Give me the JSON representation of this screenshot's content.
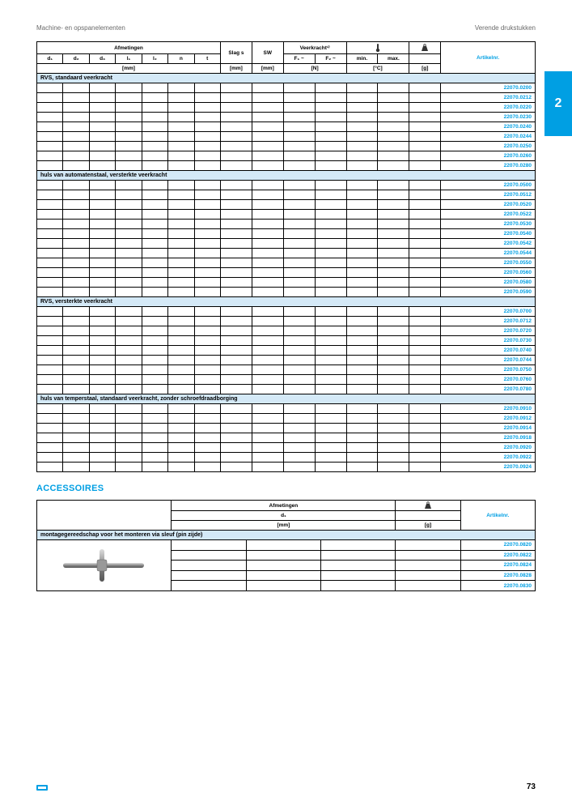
{
  "header": {
    "left": "Machine- en opspanelementen",
    "right": "Verende drukstukken"
  },
  "sideTab": "2",
  "mainTable": {
    "topHeaders": {
      "afmetingen": "Afmetingen",
      "slag": "Slag s",
      "sw": "SW",
      "veerkracht": "Veerkracht¹⁾",
      "artikel": "Artikelnr."
    },
    "subHeaders": {
      "d1": "d₁",
      "d2": "d₂",
      "d3": "d₃",
      "l1": "l₁",
      "l2": "l₂",
      "n": "n",
      "t": "t",
      "f1": "F₁ ~",
      "f2": "F₂ ~",
      "min": "min.",
      "max": "max."
    },
    "units": {
      "mm": "[mm]",
      "n": "[N]",
      "c": "[°C]",
      "g": "[g]"
    },
    "groups": [
      {
        "label": "RVS, standaard veerkracht",
        "rows": [
          {
            "art": "22070.0200"
          },
          {
            "art": "22070.0212"
          },
          {
            "art": "22070.0220"
          },
          {
            "art": "22070.0230"
          },
          {
            "art": "22070.0240"
          },
          {
            "art": "22070.0244"
          },
          {
            "art": "22070.0250"
          },
          {
            "art": "22070.0260"
          },
          {
            "art": "22070.0280"
          }
        ]
      },
      {
        "label": "huls van automatenstaal, versterkte veerkracht",
        "rows": [
          {
            "art": "22070.0500"
          },
          {
            "art": "22070.0512"
          },
          {
            "art": "22070.0520"
          },
          {
            "art": "22070.0522"
          },
          {
            "art": "22070.0530"
          },
          {
            "art": "22070.0540"
          },
          {
            "art": "22070.0542"
          },
          {
            "art": "22070.0544"
          },
          {
            "art": "22070.0550"
          },
          {
            "art": "22070.0560"
          },
          {
            "art": "22070.0580"
          },
          {
            "art": "22070.0590"
          }
        ]
      },
      {
        "label": "RVS, versterkte veerkracht",
        "rows": [
          {
            "art": "22070.0700"
          },
          {
            "art": "22070.0712"
          },
          {
            "art": "22070.0720"
          },
          {
            "art": "22070.0730"
          },
          {
            "art": "22070.0740"
          },
          {
            "art": "22070.0744"
          },
          {
            "art": "22070.0750"
          },
          {
            "art": "22070.0760"
          },
          {
            "art": "22070.0780"
          }
        ]
      },
      {
        "label": "huls van temperstaal, standaard veerkracht, zonder schroefdraadborging",
        "rows": [
          {
            "art": "22070.0910"
          },
          {
            "art": "22070.0912"
          },
          {
            "art": "22070.0914"
          },
          {
            "art": "22070.0918"
          },
          {
            "art": "22070.0920"
          },
          {
            "art": "22070.0922"
          },
          {
            "art": "22070.0924"
          }
        ]
      }
    ]
  },
  "accessoires": {
    "title": "ACCESSOIRES",
    "headers": {
      "afmetingen": "Afmetingen",
      "d1": "d₁",
      "mm": "[mm]",
      "g": "[g]",
      "artikel": "Artikelnr."
    },
    "group": "montagegereedschap voor het monteren via sleuf (pin zijde)",
    "rows": [
      {
        "art": "22070.0820"
      },
      {
        "art": "22070.0822"
      },
      {
        "art": "22070.0824"
      },
      {
        "art": "22070.0828"
      },
      {
        "art": "22070.0830"
      }
    ]
  },
  "footer": {
    "pageNum": "73"
  },
  "colors": {
    "accent": "#009fe3",
    "groupBg": "#d4e9f7"
  }
}
